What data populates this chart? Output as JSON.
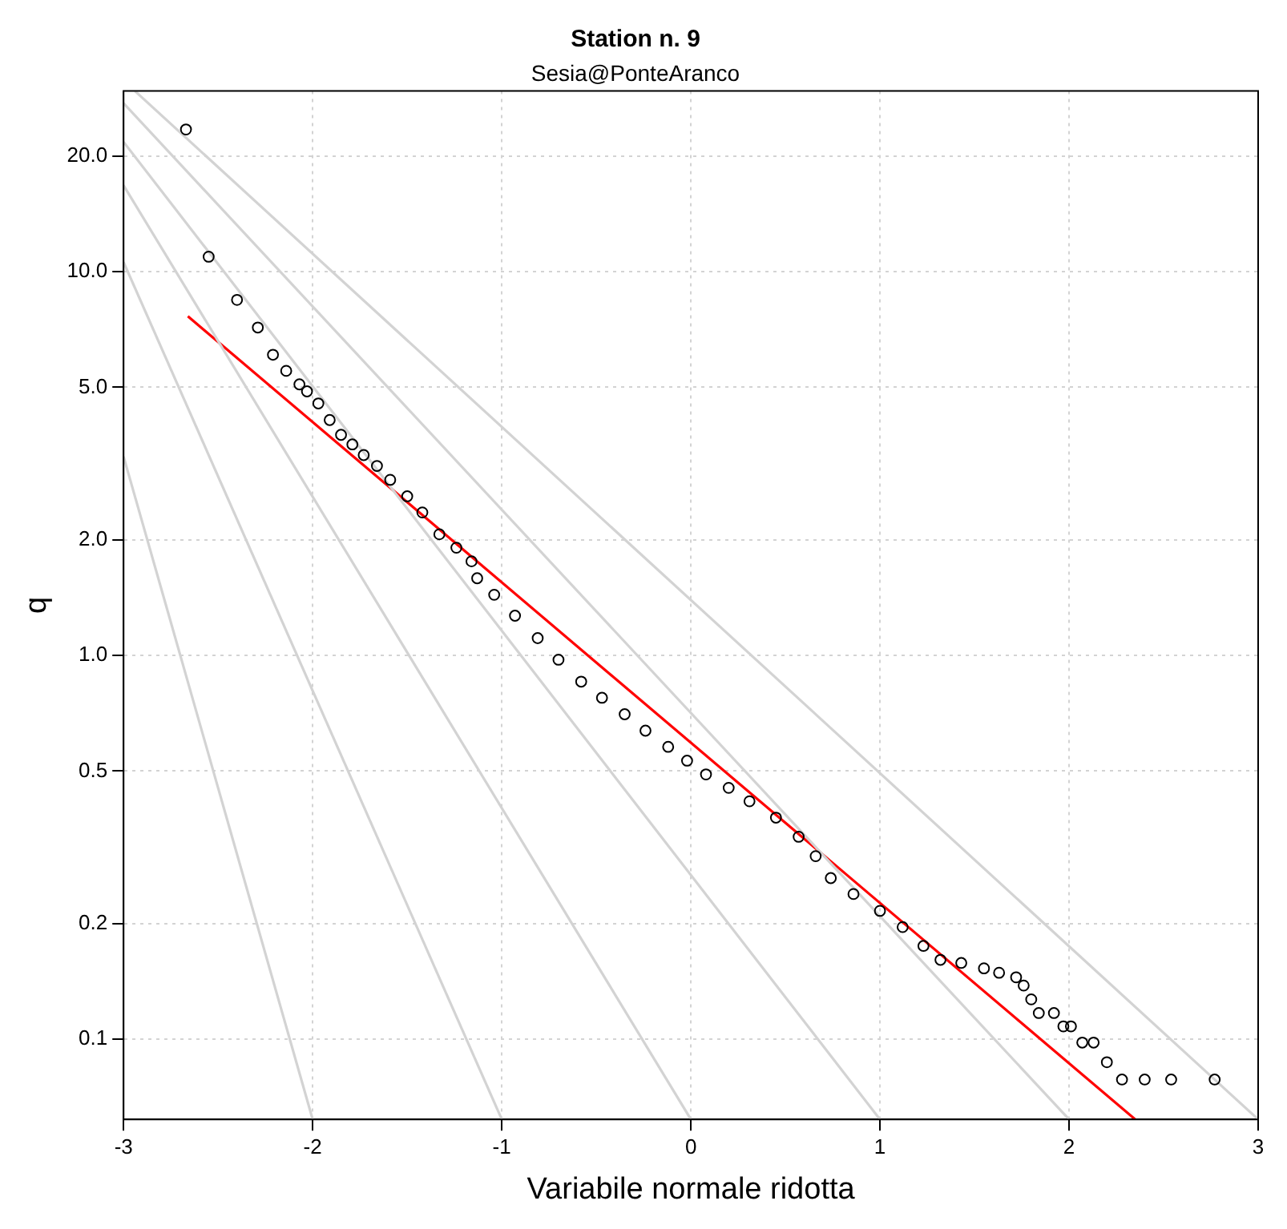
{
  "chart_data": {
    "type": "scatter",
    "title": "Station n. 9",
    "subtitle": "Sesia@PonteAranco",
    "xlabel": "Variabile normale ridotta",
    "ylabel": "q",
    "log": "y",
    "grid": true,
    "legend": false,
    "xlim": [
      -3,
      3
    ],
    "xticks": [
      -3,
      -2,
      -1,
      0,
      1,
      2,
      3
    ],
    "ylim": [
      0.0618,
      29.6
    ],
    "yticks": [
      0.1,
      0.2,
      0.5,
      {
        "value": 1,
        "label": "1.0"
      },
      {
        "value": 2,
        "label": "2.0"
      },
      {
        "value": 5,
        "label": "5.0"
      },
      {
        "value": 10,
        "label": "10.0"
      },
      {
        "value": 20,
        "label": "20.0"
      }
    ],
    "series": [
      {
        "type": "line",
        "color": "#d3d3d3",
        "marker": "none",
        "x": [
          -2.94,
          3
        ],
        "values": [
          29.6,
          0.0618
        ]
      },
      {
        "type": "line",
        "color": "#d3d3d3",
        "marker": "none",
        "x": [
          -3,
          2
        ],
        "values": [
          27.5,
          0.0618
        ]
      },
      {
        "type": "line",
        "color": "#d3d3d3",
        "marker": "none",
        "x": [
          -3,
          1
        ],
        "values": [
          21.8,
          0.0618
        ]
      },
      {
        "type": "line",
        "color": "#d3d3d3",
        "marker": "none",
        "x": [
          -3,
          0
        ],
        "values": [
          16.8,
          0.0618
        ]
      },
      {
        "type": "line",
        "color": "#d3d3d3",
        "marker": "none",
        "x": [
          -3,
          -1
        ],
        "values": [
          10.6,
          0.0618
        ]
      },
      {
        "type": "line",
        "color": "#d3d3d3",
        "marker": "none",
        "x": [
          -3,
          -2
        ],
        "values": [
          3.3,
          0.0618
        ]
      },
      {
        "type": "scatter",
        "color": "#000000",
        "marker": "circle",
        "x": [
          -2.67,
          -2.55,
          -2.4,
          -2.29,
          -2.21,
          -2.14,
          -2.07,
          -2.03,
          -1.97,
          -1.91,
          -1.85,
          -1.79,
          -1.73,
          -1.66,
          -1.59,
          -1.5,
          -1.42,
          -1.33,
          -1.24,
          -1.16,
          -1.13,
          -1.04,
          -0.93,
          -0.81,
          -0.7,
          -0.58,
          -0.47,
          -0.35,
          -0.24,
          -0.12,
          -0.02,
          0.08,
          0.2,
          0.31,
          0.45,
          0.57,
          0.66,
          0.74,
          0.86,
          1.0,
          1.12,
          1.23,
          1.32,
          1.43,
          1.55,
          1.63,
          1.72,
          1.76,
          1.8,
          1.84,
          1.92,
          1.97,
          2.01,
          2.07,
          2.13,
          2.2,
          2.28,
          2.4,
          2.54,
          2.77
        ],
        "values": [
          23.5,
          10.95,
          8.45,
          7.16,
          6.08,
          5.52,
          5.09,
          4.88,
          4.54,
          4.11,
          3.76,
          3.55,
          3.33,
          3.12,
          2.87,
          2.6,
          2.36,
          2.07,
          1.91,
          1.76,
          1.59,
          1.44,
          1.27,
          1.11,
          0.975,
          0.855,
          0.776,
          0.703,
          0.637,
          0.578,
          0.532,
          0.49,
          0.452,
          0.417,
          0.378,
          0.337,
          0.3,
          0.263,
          0.239,
          0.216,
          0.196,
          0.175,
          0.161,
          0.158,
          0.153,
          0.149,
          0.145,
          0.138,
          0.127,
          0.117,
          0.117,
          0.108,
          0.108,
          0.098,
          0.098,
          0.0871,
          0.0785,
          0.0785,
          0.0785,
          0.0785
        ]
      },
      {
        "type": "line",
        "color": "#ff0000",
        "marker": "none",
        "x": [
          -2.66,
          2.35
        ],
        "values": [
          7.66,
          0.0618
        ]
      }
    ]
  }
}
